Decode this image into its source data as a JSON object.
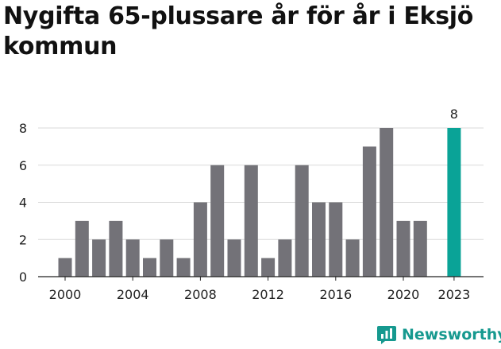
{
  "chart_data": {
    "type": "bar",
    "title": "Nygifta 65-plussare år för år i Eksjö kommun",
    "categories": [
      "2000",
      "2001",
      "2002",
      "2003",
      "2004",
      "2005",
      "2006",
      "2007",
      "2008",
      "2009",
      "2010",
      "2011",
      "2012",
      "2013",
      "2014",
      "2015",
      "2016",
      "2017",
      "2018",
      "2019",
      "2020",
      "2021",
      "2022",
      "2023"
    ],
    "values": [
      1,
      3,
      2,
      3,
      2,
      1,
      2,
      1,
      4,
      6,
      2,
      6,
      1,
      2,
      6,
      4,
      4,
      2,
      7,
      8,
      3,
      3,
      null,
      8
    ],
    "x_tick_labels": [
      "2000",
      "2004",
      "2008",
      "2012",
      "2016",
      "2020",
      "2023"
    ],
    "y_ticks": [
      0,
      2,
      4,
      6,
      8
    ],
    "ylim": [
      0,
      9
    ],
    "xlabel": "",
    "ylabel": "",
    "grid": true,
    "highlight": {
      "category": "2023",
      "label": "8"
    },
    "colors": {
      "bar": "#737278",
      "highlight": "#0aa397",
      "grid": "#d9d9d9",
      "axis": "#222222"
    }
  },
  "brand": {
    "name": "Newsworthy",
    "logo_icon": "bar-chart-speech-bubble-icon"
  }
}
